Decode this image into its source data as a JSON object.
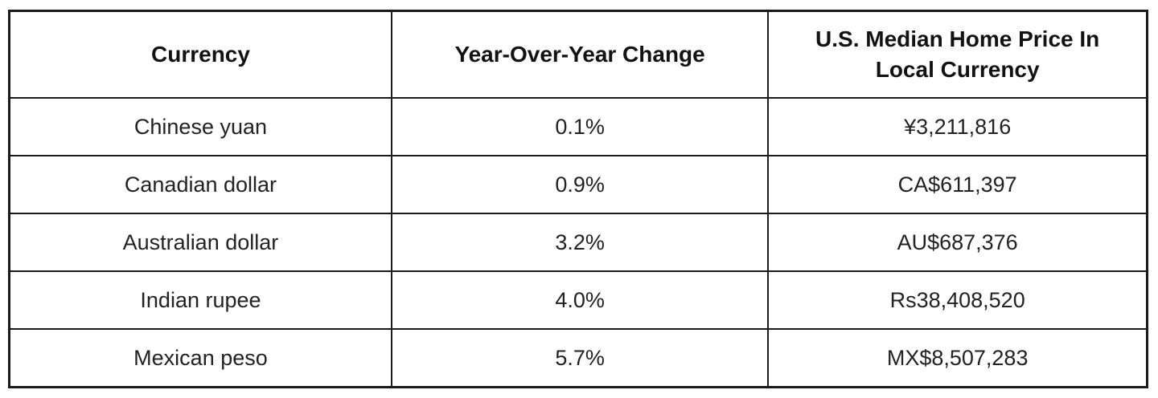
{
  "table": {
    "headers": {
      "currency": "Currency",
      "yoy_change": "Year-Over-Year Change",
      "median_price": "U.S. Median Home Price In Local Currency"
    },
    "rows": [
      {
        "currency": "Chinese yuan",
        "yoy_change": "0.1%",
        "median_price": "¥3,211,816"
      },
      {
        "currency": "Canadian dollar",
        "yoy_change": "0.9%",
        "median_price": "CA$611,397"
      },
      {
        "currency": "Australian dollar",
        "yoy_change": "3.2%",
        "median_price": "AU$687,376"
      },
      {
        "currency": "Indian rupee",
        "yoy_change": "4.0%",
        "median_price": "Rs38,408,520"
      },
      {
        "currency": "Mexican peso",
        "yoy_change": "5.7%",
        "median_price": "MX$8,507,283"
      }
    ]
  },
  "chart_data": {
    "type": "table",
    "title": "",
    "columns": [
      "Currency",
      "Year-Over-Year Change",
      "U.S. Median Home Price In Local Currency"
    ],
    "rows": [
      [
        "Chinese yuan",
        "0.1%",
        "¥3,211,816"
      ],
      [
        "Canadian dollar",
        "0.9%",
        "CA$611,397"
      ],
      [
        "Australian dollar",
        "3.2%",
        "AU$687,376"
      ],
      [
        "Indian rupee",
        "4.0%",
        "Rs38,408,520"
      ],
      [
        "Mexican peso",
        "5.7%",
        "MX$8,507,283"
      ]
    ],
    "yoy_change_percent": [
      0.1,
      0.9,
      3.2,
      4.0,
      5.7
    ],
    "median_price_local_numeric": [
      3211816,
      611397,
      687376,
      38408520,
      8507283
    ]
  },
  "colors": {
    "border": "#1a1a1a",
    "background": "#ffffff",
    "text": "#222222"
  }
}
